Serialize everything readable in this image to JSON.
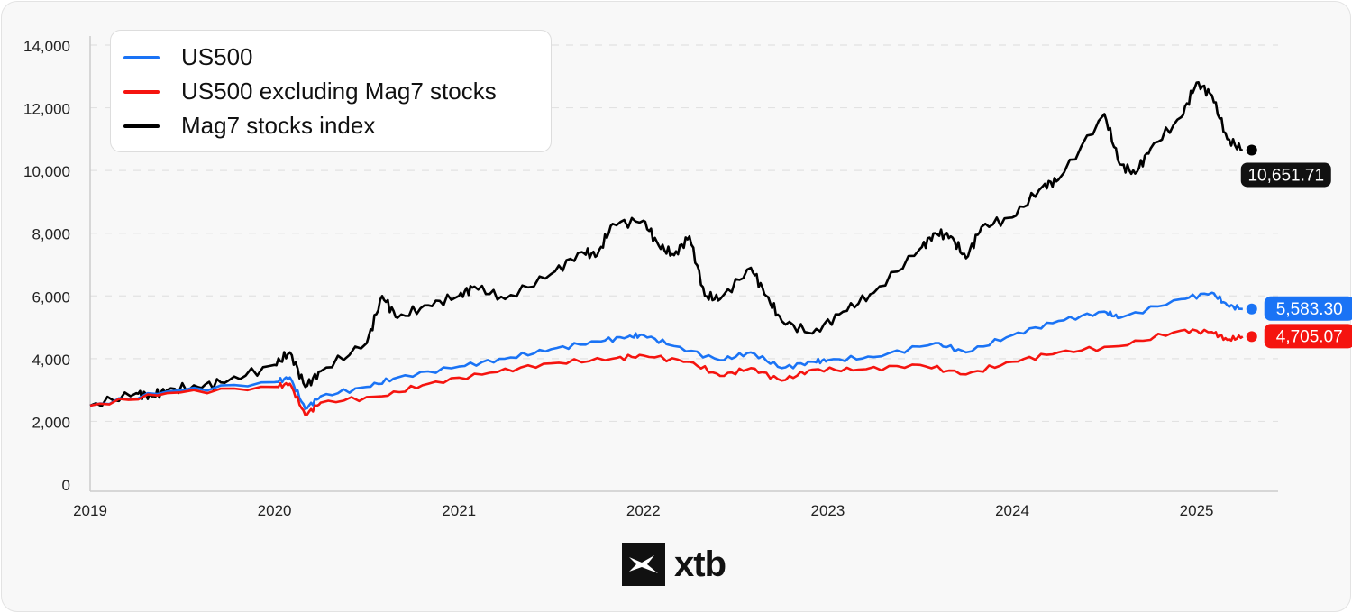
{
  "chart_data": {
    "type": "line",
    "title": "",
    "xlabel": "",
    "ylabel": "",
    "ylim": [
      0,
      14000
    ],
    "yticks": [
      "0",
      "2,000",
      "4,000",
      "6,000",
      "8,000",
      "10,000",
      "12,000",
      "14,000"
    ],
    "ytick_values": [
      0,
      2000,
      4000,
      6000,
      8000,
      10000,
      12000,
      14000
    ],
    "xticks": [
      "2019",
      "2020",
      "2021",
      "2022",
      "2023",
      "2024",
      "2025"
    ],
    "grid": "horizontal dashed",
    "legend": "top-left",
    "series": [
      {
        "name": "US500",
        "color": "#1a73f5",
        "last_label": "5,583.30",
        "points": [
          [
            "2019-01",
            2500
          ],
          [
            "2019-06",
            2950
          ],
          [
            "2020-01",
            3250
          ],
          [
            "2020-02",
            3400
          ],
          [
            "2020-03",
            2400
          ],
          [
            "2020-04",
            2800
          ],
          [
            "2020-07",
            3100
          ],
          [
            "2020-09",
            3400
          ],
          [
            "2021-01",
            3750
          ],
          [
            "2021-04",
            4000
          ],
          [
            "2021-07",
            4300
          ],
          [
            "2021-10",
            4550
          ],
          [
            "2021-12",
            4700
          ],
          [
            "2022-01",
            4750
          ],
          [
            "2022-03",
            4400
          ],
          [
            "2022-06",
            3950
          ],
          [
            "2022-08",
            4200
          ],
          [
            "2022-10",
            3700
          ],
          [
            "2022-12",
            3900
          ],
          [
            "2023-01",
            3950
          ],
          [
            "2023-04",
            4050
          ],
          [
            "2023-08",
            4500
          ],
          [
            "2023-10",
            4200
          ],
          [
            "2024-01",
            4750
          ],
          [
            "2024-04",
            5200
          ],
          [
            "2024-07",
            5500
          ],
          [
            "2024-08",
            5300
          ],
          [
            "2024-12",
            5900
          ],
          [
            "2025-02",
            6100
          ],
          [
            "2025-03",
            5700
          ],
          [
            "2025-04",
            5583.3
          ]
        ]
      },
      {
        "name": "US500 excluding Mag7 stocks",
        "color": "#f5140f",
        "last_label": "4,705.07",
        "points": [
          [
            "2019-01",
            2500
          ],
          [
            "2019-06",
            2900
          ],
          [
            "2020-01",
            3100
          ],
          [
            "2020-02",
            3200
          ],
          [
            "2020-03",
            2200
          ],
          [
            "2020-04",
            2600
          ],
          [
            "2020-08",
            2800
          ],
          [
            "2020-11",
            3200
          ],
          [
            "2021-03",
            3550
          ],
          [
            "2021-07",
            3850
          ],
          [
            "2021-11",
            4000
          ],
          [
            "2022-01",
            4100
          ],
          [
            "2022-04",
            3900
          ],
          [
            "2022-06",
            3450
          ],
          [
            "2022-08",
            3700
          ],
          [
            "2022-10",
            3300
          ],
          [
            "2022-12",
            3650
          ],
          [
            "2023-03",
            3650
          ],
          [
            "2023-07",
            3800
          ],
          [
            "2023-10",
            3500
          ],
          [
            "2024-01",
            3900
          ],
          [
            "2024-04",
            4200
          ],
          [
            "2024-08",
            4400
          ],
          [
            "2024-12",
            4900
          ],
          [
            "2025-02",
            4850
          ],
          [
            "2025-03",
            4600
          ],
          [
            "2025-04",
            4705.07
          ]
        ]
      },
      {
        "name": "Mag7 stocks index",
        "color": "#000000",
        "last_label": "10,651.71",
        "points": [
          [
            "2019-01",
            2500
          ],
          [
            "2019-04",
            2900
          ],
          [
            "2019-05",
            2800
          ],
          [
            "2019-06",
            3000
          ],
          [
            "2019-08",
            3100
          ],
          [
            "2019-10",
            3300
          ],
          [
            "2020-01",
            3800
          ],
          [
            "2020-02",
            4200
          ],
          [
            "2020-03",
            3100
          ],
          [
            "2020-04",
            3600
          ],
          [
            "2020-07",
            4500
          ],
          [
            "2020-08",
            6000
          ],
          [
            "2020-09",
            5300
          ],
          [
            "2020-11",
            5700
          ],
          [
            "2021-01",
            6000
          ],
          [
            "2021-02",
            6300
          ],
          [
            "2021-04",
            5900
          ],
          [
            "2021-07",
            6700
          ],
          [
            "2021-09",
            7400
          ],
          [
            "2021-10",
            7300
          ],
          [
            "2021-11",
            8300
          ],
          [
            "2022-01",
            8400
          ],
          [
            "2022-02",
            7600
          ],
          [
            "2022-03",
            7300
          ],
          [
            "2022-04",
            7900
          ],
          [
            "2022-05",
            6000
          ],
          [
            "2022-06",
            5900
          ],
          [
            "2022-08",
            6900
          ],
          [
            "2022-09",
            6000
          ],
          [
            "2022-10",
            5200
          ],
          [
            "2022-12",
            4800
          ],
          [
            "2023-02",
            5500
          ],
          [
            "2023-04",
            6100
          ],
          [
            "2023-07",
            7500
          ],
          [
            "2023-08",
            8000
          ],
          [
            "2023-09",
            7900
          ],
          [
            "2023-10",
            7200
          ],
          [
            "2023-11",
            8200
          ],
          [
            "2024-01",
            8500
          ],
          [
            "2024-03",
            9500
          ],
          [
            "2024-04",
            9700
          ],
          [
            "2024-07",
            11800
          ],
          [
            "2024-08",
            10200
          ],
          [
            "2024-09",
            9900
          ],
          [
            "2024-10",
            10700
          ],
          [
            "2024-12",
            11700
          ],
          [
            "2025-01",
            12800
          ],
          [
            "2025-02",
            12400
          ],
          [
            "2025-03",
            11000
          ],
          [
            "2025-04",
            10651.71
          ]
        ]
      }
    ]
  },
  "logo": {
    "text": "xtb"
  }
}
